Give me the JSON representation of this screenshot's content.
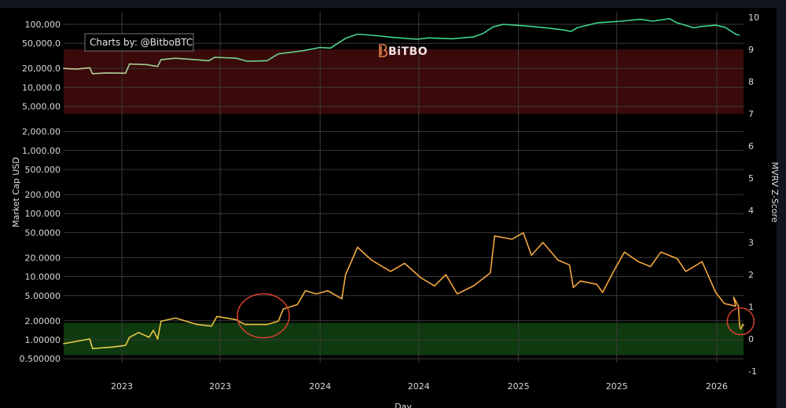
{
  "chart_data": {
    "type": "line",
    "title": "",
    "watermark": "BiTBO",
    "annotation_box": "Charts by: @BitboBTC",
    "xlabel": "Day",
    "ylabel_left": "Market Cap USD",
    "ylabel_right": "MVRV Z-Score",
    "left_axis": {
      "scale": "log",
      "ticks": [
        {
          "value": 100000,
          "label": "100,000"
        },
        {
          "value": 50000,
          "label": "50,000.0"
        },
        {
          "value": 20000,
          "label": "20,000.0"
        },
        {
          "value": 10000,
          "label": "10,000.0"
        },
        {
          "value": 5000,
          "label": "5,000.00"
        },
        {
          "value": 2000,
          "label": "2,000.00"
        },
        {
          "value": 1000,
          "label": "1,000.00"
        },
        {
          "value": 500,
          "label": "500.000"
        },
        {
          "value": 200,
          "label": "200.000"
        },
        {
          "value": 100,
          "label": "100.000"
        },
        {
          "value": 50,
          "label": "50.0000"
        },
        {
          "value": 20,
          "label": "20.0000"
        },
        {
          "value": 10,
          "label": "10.0000"
        },
        {
          "value": 5,
          "label": "5.00000"
        },
        {
          "value": 2,
          "label": "2.00000"
        },
        {
          "value": 1,
          "label": "1.00000"
        },
        {
          "value": 0.5,
          "label": "0.500000"
        }
      ]
    },
    "right_axis": {
      "scale": "linear",
      "range": [
        -1.1,
        10.2
      ],
      "ticks": [
        {
          "value": 10,
          "label": "10"
        },
        {
          "value": 9,
          "label": "9"
        },
        {
          "value": 8,
          "label": "8"
        },
        {
          "value": 7,
          "label": "7"
        },
        {
          "value": 6,
          "label": "6"
        },
        {
          "value": 5,
          "label": "5"
        },
        {
          "value": 4,
          "label": "4"
        },
        {
          "value": 3,
          "label": "3"
        },
        {
          "value": 2,
          "label": "2"
        },
        {
          "value": 1,
          "label": "1"
        },
        {
          "value": 0,
          "label": "0"
        },
        {
          "value": -1,
          "label": "-1"
        }
      ]
    },
    "x_range": [
      "2022-09-15",
      "2026-02-20"
    ],
    "x_ticks": [
      {
        "date": "2023-01-01",
        "label": "2023"
      },
      {
        "date": "2023-07-01",
        "label": "2023"
      },
      {
        "date": "2024-01-01",
        "label": "2024"
      },
      {
        "date": "2024-07-01",
        "label": "2024"
      },
      {
        "date": "2025-01-01",
        "label": "2025"
      },
      {
        "date": "2025-07-01",
        "label": "2025"
      },
      {
        "date": "2026-01-01",
        "label": "2026"
      }
    ],
    "grid": true,
    "bands": [
      {
        "axis": "right",
        "from": 7,
        "to": 9,
        "color": "#3a0a0a"
      },
      {
        "axis": "right",
        "from": -0.5,
        "to": 0.5,
        "color": "#0f3a0f"
      }
    ],
    "highlights": [
      {
        "date": "2023-09-10",
        "zscore": 0.5
      },
      {
        "date": "2026-02-14",
        "zscore": 0.45
      }
    ],
    "series": [
      {
        "axis": "left",
        "color_start": "#c7cf9a",
        "color_end": "#3fd68f",
        "points": [
          [
            "2022-09-15",
            20000
          ],
          [
            "2022-10-10",
            19500
          ],
          [
            "2022-11-03",
            20500
          ],
          [
            "2022-11-08",
            16500
          ],
          [
            "2022-12-05",
            17000
          ],
          [
            "2023-01-08",
            16800
          ],
          [
            "2023-01-15",
            23500
          ],
          [
            "2023-02-15",
            23000
          ],
          [
            "2023-03-08",
            21500
          ],
          [
            "2023-03-14",
            27500
          ],
          [
            "2023-04-10",
            29000
          ],
          [
            "2023-05-05",
            28000
          ],
          [
            "2023-06-10",
            26500
          ],
          [
            "2023-06-21",
            30000
          ],
          [
            "2023-07-30",
            29000
          ],
          [
            "2023-08-20",
            26000
          ],
          [
            "2023-09-25",
            26500
          ],
          [
            "2023-10-16",
            34000
          ],
          [
            "2023-11-29",
            38000
          ],
          [
            "2024-01-01",
            43000
          ],
          [
            "2024-01-20",
            42000
          ],
          [
            "2024-02-17",
            60000
          ],
          [
            "2024-03-10",
            70000
          ],
          [
            "2024-04-15",
            66000
          ],
          [
            "2024-05-15",
            62000
          ],
          [
            "2024-06-28",
            58000
          ],
          [
            "2024-07-19",
            61000
          ],
          [
            "2024-09-01",
            59000
          ],
          [
            "2024-10-10",
            63000
          ],
          [
            "2024-10-28",
            72000
          ],
          [
            "2024-11-15",
            91000
          ],
          [
            "2024-12-04",
            100000
          ],
          [
            "2025-01-10",
            95000
          ],
          [
            "2025-02-15",
            89000
          ],
          [
            "2025-03-23",
            82000
          ],
          [
            "2025-04-08",
            77000
          ],
          [
            "2025-04-20",
            89000
          ],
          [
            "2025-05-27",
            106000
          ],
          [
            "2025-07-09",
            112000
          ],
          [
            "2025-08-14",
            120000
          ],
          [
            "2025-09-05",
            112000
          ],
          [
            "2025-10-06",
            123000
          ],
          [
            "2025-10-18",
            107000
          ],
          [
            "2025-11-20",
            88000
          ],
          [
            "2025-12-01",
            92000
          ],
          [
            "2025-12-30",
            97000
          ],
          [
            "2026-01-16",
            90000
          ],
          [
            "2026-02-05",
            70000
          ],
          [
            "2026-02-12",
            67000
          ]
        ]
      },
      {
        "axis": "right",
        "color_start": "#e6d44a",
        "color_end": "#f5a640",
        "points": [
          [
            "2022-09-15",
            -0.15
          ],
          [
            "2022-11-03",
            0.0
          ],
          [
            "2022-11-08",
            -0.3
          ],
          [
            "2022-12-15",
            -0.25
          ],
          [
            "2023-01-08",
            -0.2
          ],
          [
            "2023-01-15",
            0.05
          ],
          [
            "2023-02-01",
            0.2
          ],
          [
            "2023-02-20",
            0.05
          ],
          [
            "2023-02-28",
            0.27
          ],
          [
            "2023-03-08",
            0.0
          ],
          [
            "2023-03-14",
            0.55
          ],
          [
            "2023-04-10",
            0.65
          ],
          [
            "2023-05-20",
            0.45
          ],
          [
            "2023-06-15",
            0.4
          ],
          [
            "2023-06-25",
            0.7
          ],
          [
            "2023-07-30",
            0.6
          ],
          [
            "2023-08-16",
            0.45
          ],
          [
            "2023-09-25",
            0.45
          ],
          [
            "2023-10-16",
            0.55
          ],
          [
            "2023-10-25",
            0.93
          ],
          [
            "2023-11-20",
            1.07
          ],
          [
            "2023-12-05",
            1.5
          ],
          [
            "2023-12-25",
            1.4
          ],
          [
            "2024-01-15",
            1.5
          ],
          [
            "2024-02-10",
            1.25
          ],
          [
            "2024-02-17",
            2.0
          ],
          [
            "2024-03-10",
            2.85
          ],
          [
            "2024-04-05",
            2.45
          ],
          [
            "2024-05-10",
            2.1
          ],
          [
            "2024-06-05",
            2.35
          ],
          [
            "2024-07-05",
            1.9
          ],
          [
            "2024-07-30",
            1.65
          ],
          [
            "2024-08-20",
            2.0
          ],
          [
            "2024-09-10",
            1.4
          ],
          [
            "2024-10-10",
            1.65
          ],
          [
            "2024-10-28",
            1.88
          ],
          [
            "2024-11-10",
            2.05
          ],
          [
            "2024-11-18",
            3.2
          ],
          [
            "2024-12-20",
            3.1
          ],
          [
            "2025-01-10",
            3.3
          ],
          [
            "2025-01-25",
            2.6
          ],
          [
            "2025-02-15",
            3.0
          ],
          [
            "2025-03-15",
            2.45
          ],
          [
            "2025-04-05",
            2.3
          ],
          [
            "2025-04-12",
            1.6
          ],
          [
            "2025-04-25",
            1.8
          ],
          [
            "2025-05-25",
            1.7
          ],
          [
            "2025-06-05",
            1.45
          ],
          [
            "2025-06-25",
            2.1
          ],
          [
            "2025-07-15",
            2.7
          ],
          [
            "2025-08-10",
            2.4
          ],
          [
            "2025-09-01",
            2.25
          ],
          [
            "2025-09-20",
            2.7
          ],
          [
            "2025-10-20",
            2.5
          ],
          [
            "2025-11-05",
            2.1
          ],
          [
            "2025-12-05",
            2.4
          ],
          [
            "2025-12-30",
            1.45
          ],
          [
            "2026-01-15",
            1.1
          ],
          [
            "2026-02-05",
            1.02
          ],
          [
            "2026-02-01",
            1.3
          ],
          [
            "2026-02-10",
            1.02
          ],
          [
            "2026-02-12",
            0.41
          ],
          [
            "2026-02-14",
            0.3
          ],
          [
            "2026-02-18",
            0.45
          ],
          [
            "2026-02-20",
            0.41
          ]
        ]
      }
    ]
  }
}
